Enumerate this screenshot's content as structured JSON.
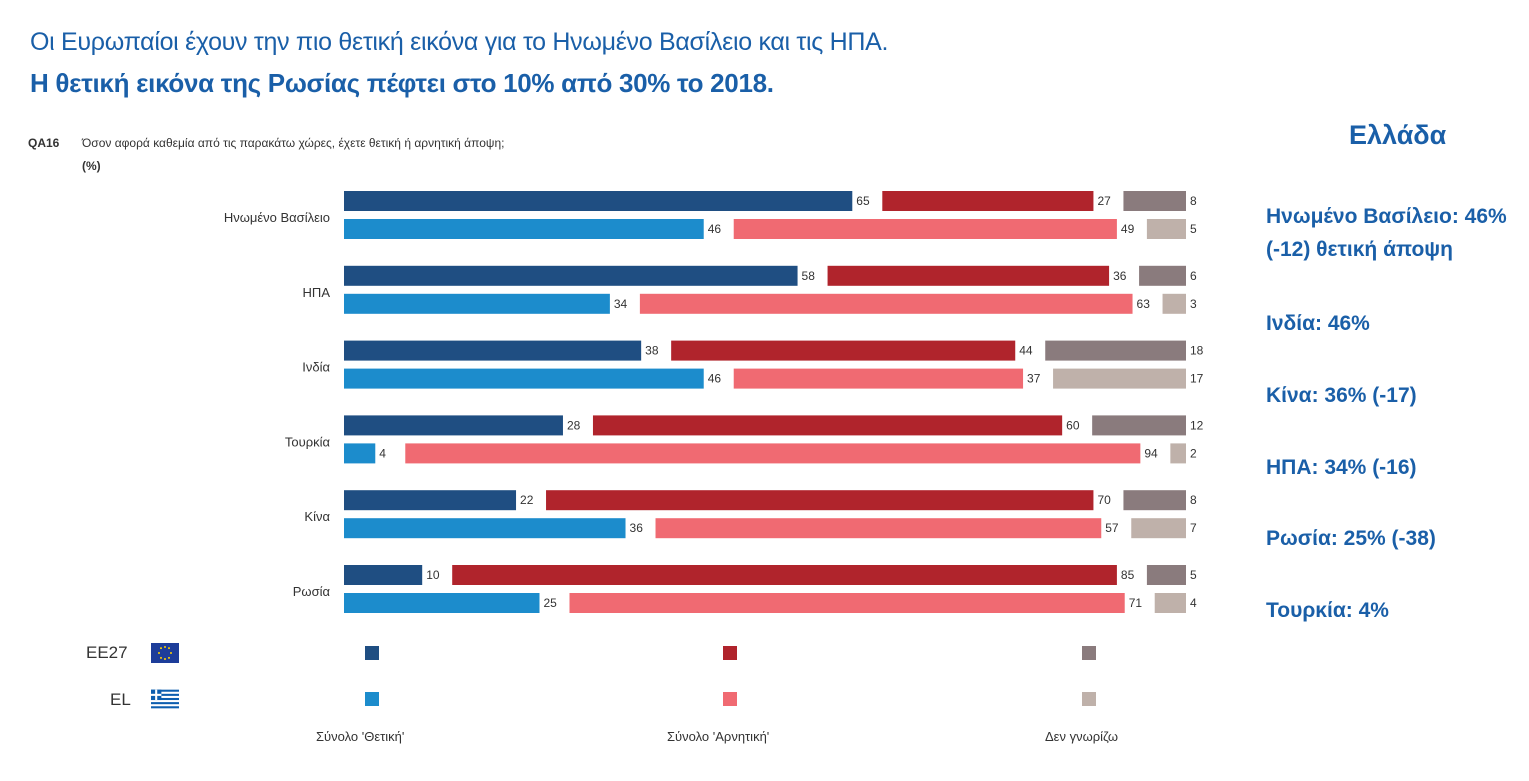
{
  "title_line1": "Οι Ευρωπαίοι έχουν την πιο θετική εικόνα για το Ηνωμένο Βασίλειο και τις ΗΠΑ.",
  "title_line2": "Η θετική εικόνα της Ρωσίας πέφτει στο 10% από 30% το 2018.",
  "question": {
    "code": "QA16",
    "text": "Όσον αφορά καθεμία από τις παρακάτω χώρες, έχετε θετική ή αρνητική άποψη;",
    "unit": "(%)"
  },
  "side_panel": {
    "title": "Ελλάδα",
    "items": [
      "Ηνωμένο Βασίλειο: 46% (-12) θετική άποψη",
      "Ινδία: 46%",
      "Κίνα: 36% (-17)",
      "ΗΠΑ: 34% (-16)",
      "Ρωσία: 25% (-38)",
      "Τουρκία: 4%"
    ]
  },
  "legend": {
    "rows": [
      "EE27",
      "EL"
    ],
    "columns": [
      "Σύνολο 'Θετική'",
      "Σύνολο 'Αρνητική'",
      "Δεν γνωρίζω"
    ]
  },
  "colors": {
    "ee27_pos": "#1f4e82",
    "ee27_neg": "#b0242c",
    "ee27_dk": "#8a7b7d",
    "el_pos": "#1c8ccc",
    "el_neg": "#f06a72",
    "el_dk": "#bfb1aa",
    "text_blue": "#1a5fa8"
  },
  "chart_data": {
    "type": "bar",
    "orientation": "horizontal-stacked",
    "categories": [
      "Ηνωμένο Βασίλειο",
      "ΗΠΑ",
      "Ινδία",
      "Τουρκία",
      "Κίνα",
      "Ρωσία"
    ],
    "segments": [
      "Σύνολο 'Θετική'",
      "Σύνολο 'Αρνητική'",
      "Δεν γνωρίζω"
    ],
    "series": [
      {
        "name": "EE27",
        "positive": [
          65,
          58,
          38,
          28,
          22,
          10
        ],
        "negative": [
          27,
          36,
          44,
          60,
          70,
          85
        ],
        "dont_know": [
          8,
          6,
          18,
          12,
          8,
          5
        ]
      },
      {
        "name": "EL",
        "positive": [
          46,
          34,
          46,
          4,
          36,
          25
        ],
        "negative": [
          49,
          63,
          37,
          94,
          57,
          71
        ],
        "dont_know": [
          5,
          3,
          17,
          2,
          7,
          4
        ]
      }
    ],
    "xlim": [
      0,
      100
    ]
  }
}
